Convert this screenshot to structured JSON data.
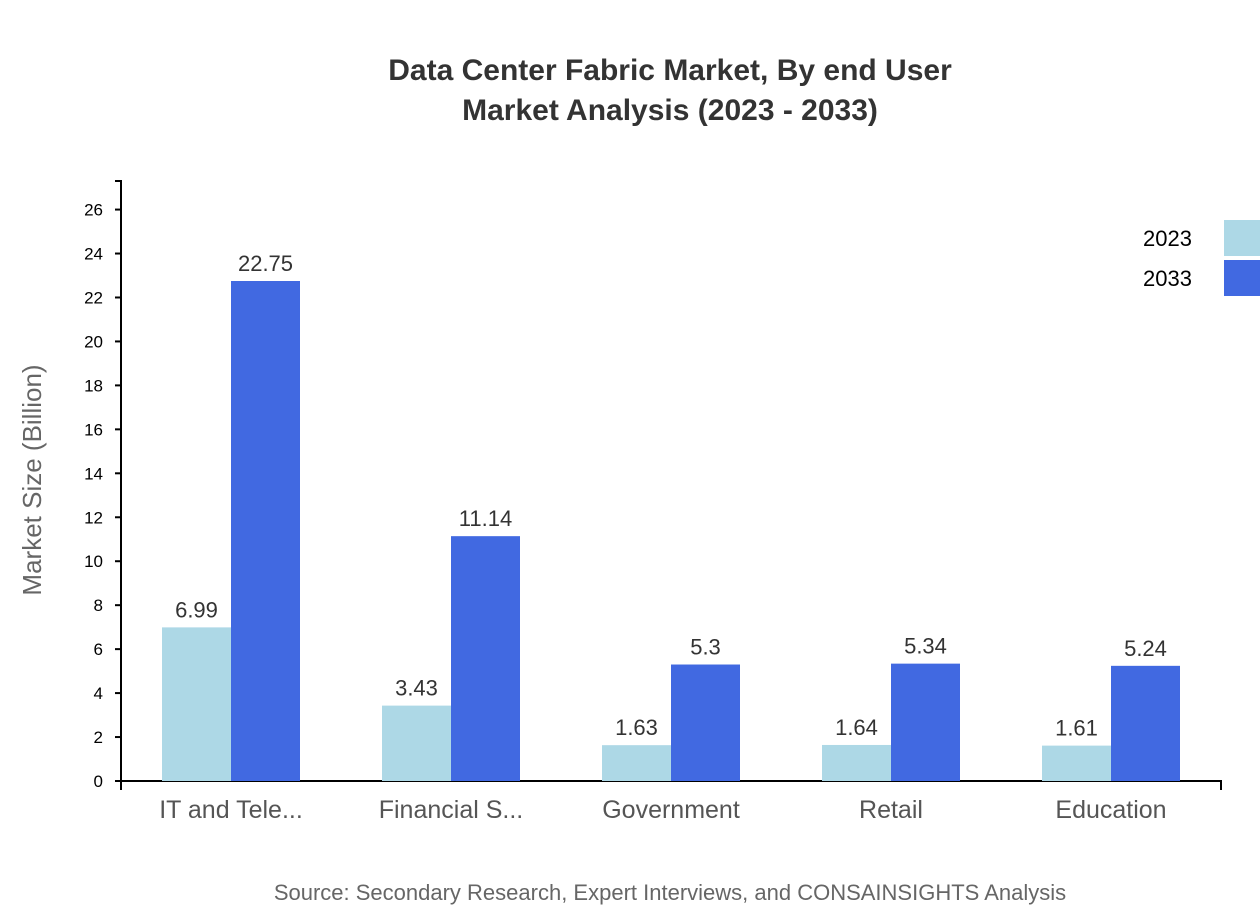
{
  "chart_data": {
    "type": "bar",
    "title": [
      "Data Center Fabric Market, By end User",
      "Market Analysis (2023 - 2033)"
    ],
    "xlabel": "",
    "ylabel": "Market Size (Billion)",
    "categories": [
      "IT and Tele...",
      "Financial S...",
      "Government",
      "Retail",
      "Education"
    ],
    "series": [
      {
        "name": "2023",
        "color": "#add8e6",
        "values": [
          6.99,
          3.43,
          1.63,
          1.64,
          1.61
        ]
      },
      {
        "name": "2033",
        "color": "#4169e1",
        "values": [
          22.75,
          11.14,
          5.3,
          5.34,
          5.24
        ]
      }
    ],
    "ylim": [
      0,
      27.3
    ],
    "yticks": [
      0,
      2,
      4,
      6,
      8,
      10,
      12,
      14,
      16,
      18,
      20,
      22,
      24,
      26
    ],
    "grid": false,
    "legend": "top-right",
    "source": "Source: Secondary Research, Expert Interviews, and CONSAINSIGHTS Analysis"
  }
}
